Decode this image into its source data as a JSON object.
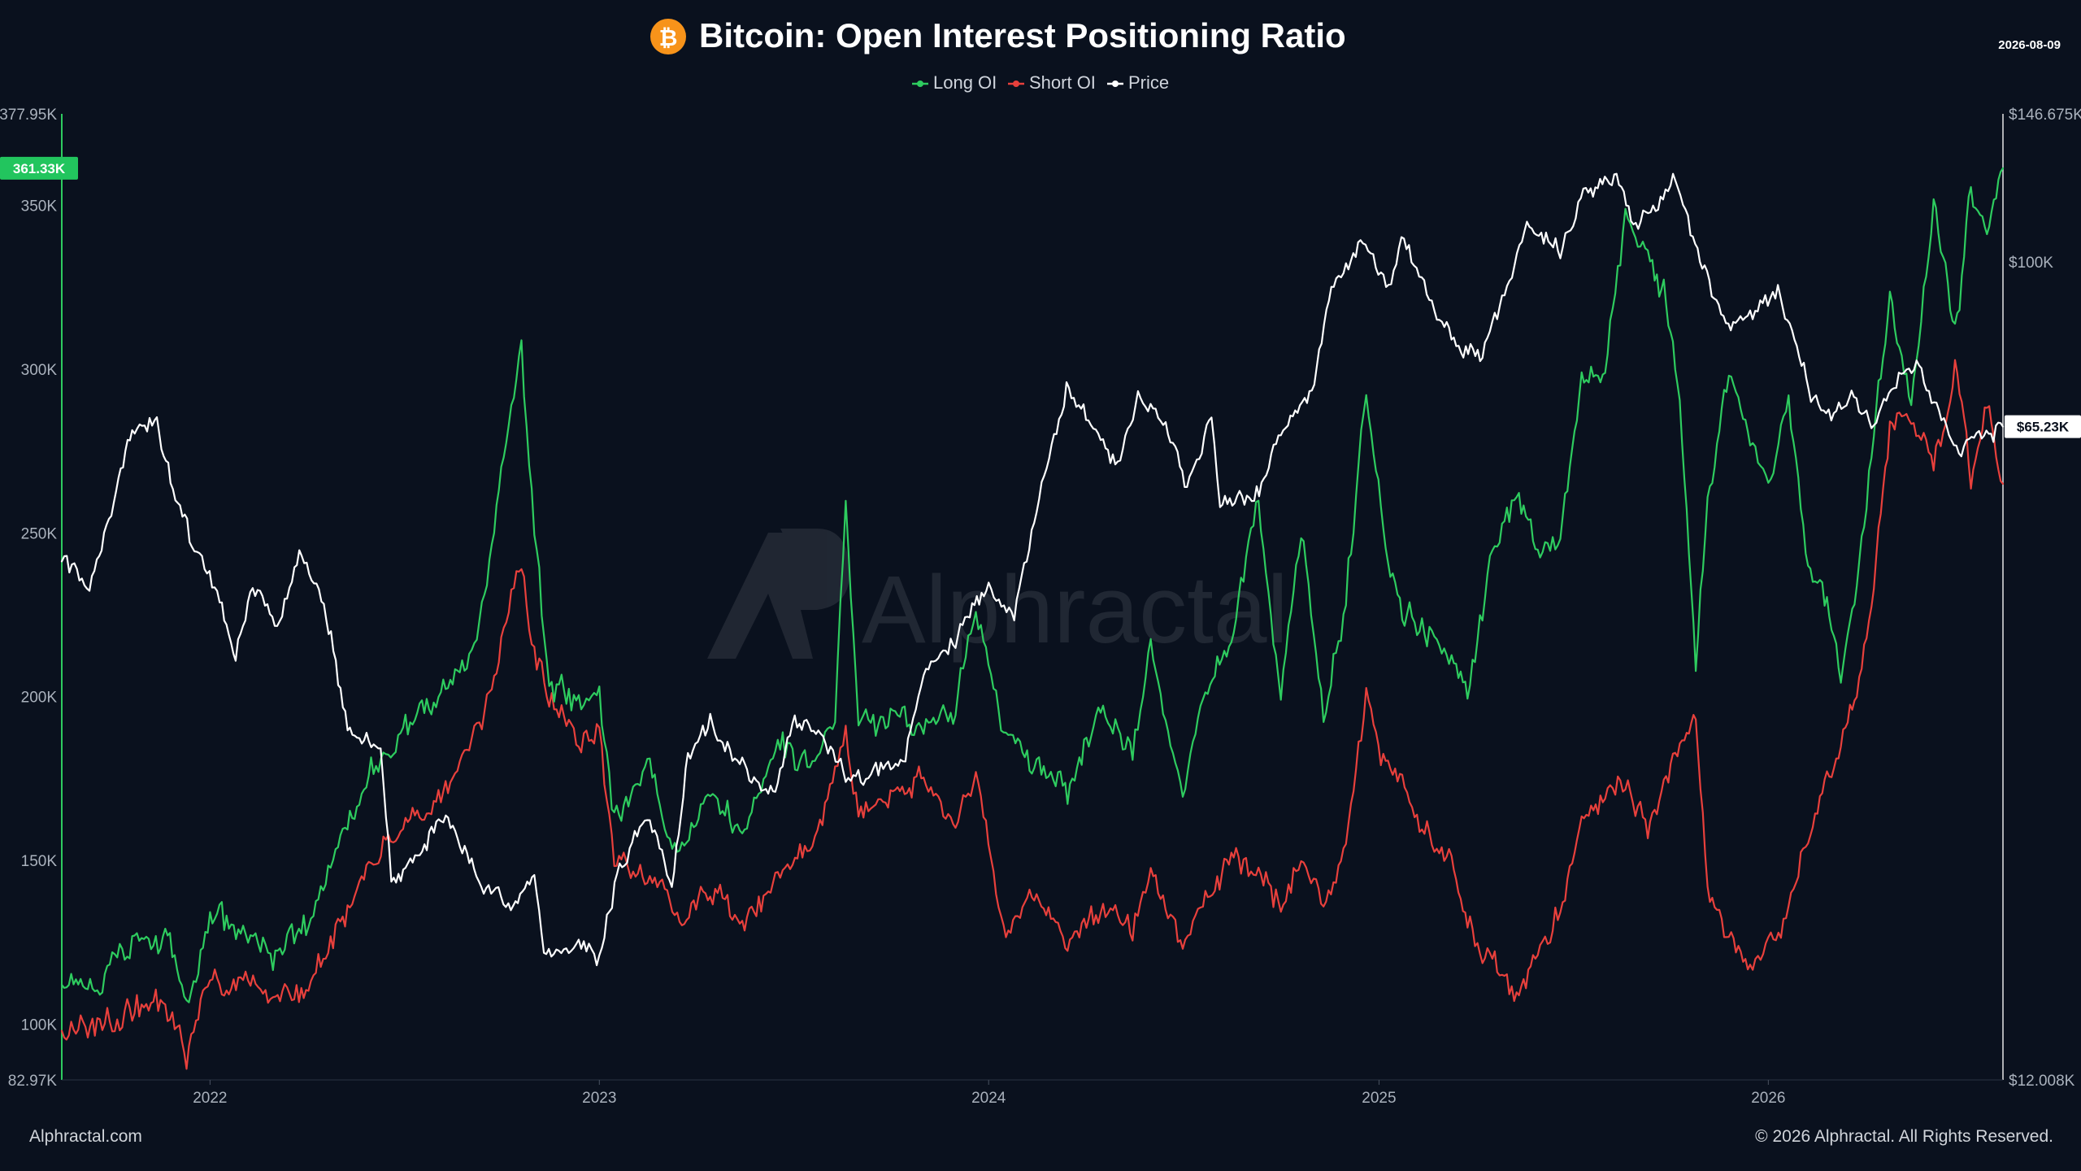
{
  "header": {
    "title": "Bitcoin: Open Interest Positioning Ratio",
    "date": "2026-08-09",
    "logo_symbol": "₿",
    "logo_name": "bitcoin-icon"
  },
  "legend": {
    "items": [
      {
        "label": "Long OI",
        "color": "#2ecc5f"
      },
      {
        "label": "Short OI",
        "color": "#e8403c"
      },
      {
        "label": "Price",
        "color": "#ffffff"
      }
    ]
  },
  "watermark": "Alphractal",
  "footer": {
    "left": "Alphractal.com",
    "right": "© 2026 Alphractal. All Rights Reserved."
  },
  "chart_data": {
    "type": "line",
    "title": "Bitcoin: Open Interest Positioning Ratio",
    "legend_position": "top-center",
    "grid": false,
    "x_range": [
      "2021-08-15",
      "2026-08-09"
    ],
    "x_ticks": [
      {
        "label": "2022",
        "date": "2022-01-01"
      },
      {
        "label": "2023",
        "date": "2023-01-01"
      },
      {
        "label": "2024",
        "date": "2024-01-01"
      },
      {
        "label": "2025",
        "date": "2025-01-01"
      },
      {
        "label": "2026",
        "date": "2026-01-01"
      }
    ],
    "y_left": {
      "range": [
        82970,
        377950
      ],
      "top_label": "377.95K",
      "bottom_label": "82.97K",
      "ticks": [
        {
          "label": "350K",
          "value": 350000
        },
        {
          "label": "300K",
          "value": 300000
        },
        {
          "label": "250K",
          "value": 250000
        },
        {
          "label": "200K",
          "value": 200000
        },
        {
          "label": "150K",
          "value": 150000
        },
        {
          "label": "100K",
          "value": 100000
        }
      ],
      "current_label": "361.33K",
      "current_value": 361330,
      "current_color": "#22c55e"
    },
    "y_right": {
      "scale": "log",
      "range": [
        12008,
        146675
      ],
      "top_label": "$146.675K",
      "bottom_label": "$12.008K",
      "ticks": [
        {
          "label": "$100K",
          "value": 100000
        }
      ],
      "current_label": "$65.23K",
      "current_value": 65230
    },
    "series": [
      {
        "name": "Long OI",
        "axis": "left",
        "color": "#2ecc5f",
        "points": [
          [
            "2021-08-15",
            112000
          ],
          [
            "2021-09-15",
            110000
          ],
          [
            "2021-10-20",
            124000
          ],
          [
            "2021-11-20",
            128000
          ],
          [
            "2021-12-10",
            104000
          ],
          [
            "2022-01-01",
            133000
          ],
          [
            "2022-02-01",
            128000
          ],
          [
            "2022-03-01",
            120000
          ],
          [
            "2022-04-01",
            132000
          ],
          [
            "2022-05-01",
            155000
          ],
          [
            "2022-06-01",
            175000
          ],
          [
            "2022-07-01",
            190000
          ],
          [
            "2022-08-01",
            200000
          ],
          [
            "2022-09-01",
            212000
          ],
          [
            "2022-09-20",
            240000
          ],
          [
            "2022-10-01",
            270000
          ],
          [
            "2022-10-20",
            305000
          ],
          [
            "2022-11-01",
            250000
          ],
          [
            "2022-11-15",
            205000
          ],
          [
            "2022-12-15",
            198000
          ],
          [
            "2023-01-01",
            200000
          ],
          [
            "2023-01-15",
            160000
          ],
          [
            "2023-02-15",
            180000
          ],
          [
            "2023-03-15",
            150000
          ],
          [
            "2023-04-15",
            170000
          ],
          [
            "2023-05-15",
            160000
          ],
          [
            "2023-06-15",
            185000
          ],
          [
            "2023-07-15",
            180000
          ],
          [
            "2023-08-10",
            195000
          ],
          [
            "2023-08-20",
            255000
          ],
          [
            "2023-09-01",
            190000
          ],
          [
            "2023-10-01",
            195000
          ],
          [
            "2023-11-01",
            190000
          ],
          [
            "2023-12-01",
            198000
          ],
          [
            "2023-12-20",
            225000
          ],
          [
            "2024-01-15",
            190000
          ],
          [
            "2024-02-15",
            180000
          ],
          [
            "2024-03-15",
            170000
          ],
          [
            "2024-04-15",
            195000
          ],
          [
            "2024-05-15",
            185000
          ],
          [
            "2024-06-01",
            215000
          ],
          [
            "2024-07-01",
            170000
          ],
          [
            "2024-07-20",
            200000
          ],
          [
            "2024-08-20",
            225000
          ],
          [
            "2024-09-10",
            260000
          ],
          [
            "2024-10-01",
            200000
          ],
          [
            "2024-10-20",
            250000
          ],
          [
            "2024-11-10",
            195000
          ],
          [
            "2024-12-01",
            230000
          ],
          [
            "2024-12-20",
            295000
          ],
          [
            "2025-01-05",
            250000
          ],
          [
            "2025-01-25",
            225000
          ],
          [
            "2025-02-15",
            220000
          ],
          [
            "2025-03-10",
            210000
          ],
          [
            "2025-03-25",
            200000
          ],
          [
            "2025-04-15",
            240000
          ],
          [
            "2025-05-10",
            260000
          ],
          [
            "2025-06-01",
            245000
          ],
          [
            "2025-06-20",
            250000
          ],
          [
            "2025-07-10",
            295000
          ],
          [
            "2025-08-01",
            300000
          ],
          [
            "2025-08-20",
            345000
          ],
          [
            "2025-09-10",
            335000
          ],
          [
            "2025-09-25",
            325000
          ],
          [
            "2025-10-10",
            290000
          ],
          [
            "2025-10-25",
            210000
          ],
          [
            "2025-11-05",
            260000
          ],
          [
            "2025-11-25",
            300000
          ],
          [
            "2025-12-15",
            280000
          ],
          [
            "2026-01-01",
            265000
          ],
          [
            "2026-01-20",
            290000
          ],
          [
            "2026-02-05",
            245000
          ],
          [
            "2026-02-25",
            225000
          ],
          [
            "2026-03-10",
            205000
          ],
          [
            "2026-03-25",
            235000
          ],
          [
            "2026-04-10",
            280000
          ],
          [
            "2026-04-25",
            320000
          ],
          [
            "2026-05-15",
            290000
          ],
          [
            "2026-06-05",
            350000
          ],
          [
            "2026-06-25",
            310000
          ],
          [
            "2026-07-10",
            355000
          ],
          [
            "2026-07-25",
            340000
          ],
          [
            "2026-08-09",
            361330
          ]
        ]
      },
      {
        "name": "Short OI",
        "axis": "left",
        "color": "#e8403c",
        "points": [
          [
            "2021-08-15",
            98000
          ],
          [
            "2021-09-15",
            99000
          ],
          [
            "2021-10-20",
            104000
          ],
          [
            "2021-11-20",
            108000
          ],
          [
            "2021-12-10",
            91000
          ],
          [
            "2022-01-01",
            112000
          ],
          [
            "2022-02-01",
            116000
          ],
          [
            "2022-03-01",
            108000
          ],
          [
            "2022-04-01",
            110000
          ],
          [
            "2022-05-01",
            130000
          ],
          [
            "2022-06-01",
            150000
          ],
          [
            "2022-07-01",
            160000
          ],
          [
            "2022-08-01",
            165000
          ],
          [
            "2022-09-01",
            185000
          ],
          [
            "2022-09-20",
            200000
          ],
          [
            "2022-10-01",
            215000
          ],
          [
            "2022-10-20",
            240000
          ],
          [
            "2022-11-01",
            215000
          ],
          [
            "2022-11-15",
            200000
          ],
          [
            "2022-12-15",
            185000
          ],
          [
            "2023-01-01",
            190000
          ],
          [
            "2023-01-15",
            150000
          ],
          [
            "2023-02-15",
            145000
          ],
          [
            "2023-03-15",
            135000
          ],
          [
            "2023-04-15",
            140000
          ],
          [
            "2023-05-15",
            130000
          ],
          [
            "2023-06-15",
            145000
          ],
          [
            "2023-07-15",
            150000
          ],
          [
            "2023-08-10",
            175000
          ],
          [
            "2023-08-20",
            190000
          ],
          [
            "2023-09-01",
            160000
          ],
          [
            "2023-10-01",
            170000
          ],
          [
            "2023-11-01",
            175000
          ],
          [
            "2023-12-01",
            160000
          ],
          [
            "2023-12-20",
            175000
          ],
          [
            "2024-01-15",
            130000
          ],
          [
            "2024-02-15",
            140000
          ],
          [
            "2024-03-15",
            125000
          ],
          [
            "2024-04-15",
            135000
          ],
          [
            "2024-05-15",
            130000
          ],
          [
            "2024-06-01",
            145000
          ],
          [
            "2024-07-01",
            125000
          ],
          [
            "2024-07-20",
            140000
          ],
          [
            "2024-08-20",
            150000
          ],
          [
            "2024-09-10",
            145000
          ],
          [
            "2024-10-01",
            135000
          ],
          [
            "2024-10-20",
            150000
          ],
          [
            "2024-11-10",
            135000
          ],
          [
            "2024-12-01",
            155000
          ],
          [
            "2024-12-20",
            200000
          ],
          [
            "2025-01-05",
            180000
          ],
          [
            "2025-01-25",
            170000
          ],
          [
            "2025-02-15",
            160000
          ],
          [
            "2025-03-10",
            150000
          ],
          [
            "2025-03-25",
            130000
          ],
          [
            "2025-04-15",
            120000
          ],
          [
            "2025-05-10",
            110000
          ],
          [
            "2025-06-01",
            120000
          ],
          [
            "2025-06-20",
            135000
          ],
          [
            "2025-07-10",
            165000
          ],
          [
            "2025-08-01",
            170000
          ],
          [
            "2025-08-20",
            175000
          ],
          [
            "2025-09-10",
            160000
          ],
          [
            "2025-09-25",
            175000
          ],
          [
            "2025-10-10",
            185000
          ],
          [
            "2025-10-25",
            195000
          ],
          [
            "2025-11-05",
            140000
          ],
          [
            "2025-11-25",
            125000
          ],
          [
            "2025-12-15",
            118000
          ],
          [
            "2026-01-01",
            122000
          ],
          [
            "2026-01-20",
            135000
          ],
          [
            "2026-02-05",
            155000
          ],
          [
            "2026-02-25",
            175000
          ],
          [
            "2026-03-10",
            185000
          ],
          [
            "2026-03-25",
            200000
          ],
          [
            "2026-04-10",
            235000
          ],
          [
            "2026-04-25",
            285000
          ],
          [
            "2026-05-15",
            285000
          ],
          [
            "2026-06-05",
            270000
          ],
          [
            "2026-06-25",
            300000
          ],
          [
            "2026-07-10",
            265000
          ],
          [
            "2026-07-25",
            290000
          ],
          [
            "2026-08-09",
            265000
          ]
        ]
      },
      {
        "name": "Price",
        "axis": "right",
        "color": "#ffffff",
        "points": [
          [
            "2021-08-15",
            46000
          ],
          [
            "2021-09-10",
            43000
          ],
          [
            "2021-10-05",
            55000
          ],
          [
            "2021-10-20",
            64000
          ],
          [
            "2021-11-10",
            67000
          ],
          [
            "2021-11-25",
            57000
          ],
          [
            "2021-12-15",
            48000
          ],
          [
            "2022-01-10",
            42000
          ],
          [
            "2022-01-25",
            36000
          ],
          [
            "2022-02-10",
            44000
          ],
          [
            "2022-03-05",
            39000
          ],
          [
            "2022-03-28",
            47000
          ],
          [
            "2022-04-20",
            40000
          ],
          [
            "2022-05-10",
            30000
          ],
          [
            "2022-06-10",
            28000
          ],
          [
            "2022-06-20",
            20000
          ],
          [
            "2022-07-10",
            21000
          ],
          [
            "2022-08-10",
            24000
          ],
          [
            "2022-09-10",
            20000
          ],
          [
            "2022-10-10",
            19000
          ],
          [
            "2022-11-01",
            20500
          ],
          [
            "2022-11-10",
            16500
          ],
          [
            "2022-12-15",
            17000
          ],
          [
            "2023-01-01",
            16600
          ],
          [
            "2023-01-20",
            21000
          ],
          [
            "2023-02-15",
            24000
          ],
          [
            "2023-03-10",
            20000
          ],
          [
            "2023-03-25",
            28000
          ],
          [
            "2023-04-15",
            30000
          ],
          [
            "2023-05-15",
            27000
          ],
          [
            "2023-06-15",
            25000
          ],
          [
            "2023-07-01",
            30500
          ],
          [
            "2023-08-01",
            29200
          ],
          [
            "2023-08-20",
            26000
          ],
          [
            "2023-09-15",
            26500
          ],
          [
            "2023-10-15",
            28000
          ],
          [
            "2023-11-01",
            34500
          ],
          [
            "2023-12-01",
            38000
          ],
          [
            "2024-01-01",
            42500
          ],
          [
            "2024-01-25",
            40000
          ],
          [
            "2024-02-15",
            52000
          ],
          [
            "2024-03-14",
            72000
          ],
          [
            "2024-04-15",
            63000
          ],
          [
            "2024-05-01",
            58000
          ],
          [
            "2024-05-20",
            70000
          ],
          [
            "2024-06-15",
            66000
          ],
          [
            "2024-07-05",
            56000
          ],
          [
            "2024-07-28",
            68000
          ],
          [
            "2024-08-05",
            53000
          ],
          [
            "2024-09-06",
            54000
          ],
          [
            "2024-10-01",
            63000
          ],
          [
            "2024-10-30",
            72000
          ],
          [
            "2024-11-15",
            90000
          ],
          [
            "2024-12-17",
            106000
          ],
          [
            "2025-01-10",
            94000
          ],
          [
            "2025-01-22",
            106000
          ],
          [
            "2025-02-10",
            97000
          ],
          [
            "2025-03-01",
            84000
          ],
          [
            "2025-04-08",
            77000
          ],
          [
            "2025-05-01",
            95000
          ],
          [
            "2025-05-22",
            111000
          ],
          [
            "2025-06-20",
            103000
          ],
          [
            "2025-07-14",
            122000
          ],
          [
            "2025-08-14",
            123000
          ],
          [
            "2025-09-01",
            108000
          ],
          [
            "2025-10-06",
            125000
          ],
          [
            "2025-10-20",
            108000
          ],
          [
            "2025-11-20",
            85000
          ],
          [
            "2025-12-15",
            88000
          ],
          [
            "2026-01-10",
            93000
          ],
          [
            "2026-02-10",
            70000
          ],
          [
            "2026-03-01",
            66000
          ],
          [
            "2026-03-20",
            70000
          ],
          [
            "2026-04-10",
            66000
          ],
          [
            "2026-05-01",
            74000
          ],
          [
            "2026-05-20",
            78000
          ],
          [
            "2026-06-10",
            68000
          ],
          [
            "2026-07-01",
            62000
          ],
          [
            "2026-07-20",
            64000
          ],
          [
            "2026-08-09",
            65230
          ]
        ]
      }
    ]
  }
}
